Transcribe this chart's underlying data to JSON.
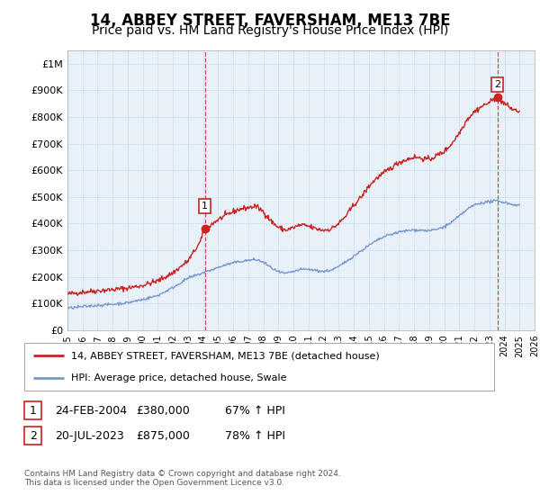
{
  "title": "14, ABBEY STREET, FAVERSHAM, ME13 7BE",
  "subtitle": "Price paid vs. HM Land Registry's House Price Index (HPI)",
  "title_fontsize": 12,
  "subtitle_fontsize": 10,
  "ylim": [
    0,
    1050000
  ],
  "xlim_start": 1995.0,
  "xlim_end": 2026.0,
  "yticks": [
    0,
    100000,
    200000,
    300000,
    400000,
    500000,
    600000,
    700000,
    800000,
    900000,
    1000000
  ],
  "ytick_labels": [
    "£0",
    "£100K",
    "£200K",
    "£300K",
    "£400K",
    "£500K",
    "£600K",
    "£700K",
    "£800K",
    "£900K",
    "£1M"
  ],
  "xticks": [
    1995,
    1996,
    1997,
    1998,
    1999,
    2000,
    2001,
    2002,
    2003,
    2004,
    2005,
    2006,
    2007,
    2008,
    2009,
    2010,
    2011,
    2012,
    2013,
    2014,
    2015,
    2016,
    2017,
    2018,
    2019,
    2020,
    2021,
    2022,
    2023,
    2024,
    2025,
    2026
  ],
  "grid_color": "#ccddee",
  "background_color": "#ffffff",
  "plot_bg_color": "#e8f0f8",
  "red_line_color": "#cc2222",
  "blue_line_color": "#7799cc",
  "sale1_x": 2004.12,
  "sale1_y": 380000,
  "sale2_x": 2023.54,
  "sale2_y": 875000,
  "sale1_label": "1",
  "sale2_label": "2",
  "legend_line1": "14, ABBEY STREET, FAVERSHAM, ME13 7BE (detached house)",
  "legend_line2": "HPI: Average price, detached house, Swale",
  "copyright": "Contains HM Land Registry data © Crown copyright and database right 2024.\nThis data is licensed under the Open Government Licence v3.0.",
  "red_anchors": [
    [
      1995.0,
      135000
    ],
    [
      1996.0,
      143000
    ],
    [
      1997.0,
      148000
    ],
    [
      1998.0,
      152000
    ],
    [
      1999.0,
      158000
    ],
    [
      2000.0,
      168000
    ],
    [
      2001.0,
      185000
    ],
    [
      2002.0,
      215000
    ],
    [
      2003.0,
      260000
    ],
    [
      2003.8,
      330000
    ],
    [
      2004.12,
      380000
    ],
    [
      2004.5,
      395000
    ],
    [
      2005.0,
      415000
    ],
    [
      2005.5,
      430000
    ],
    [
      2006.0,
      445000
    ],
    [
      2006.5,
      455000
    ],
    [
      2007.0,
      460000
    ],
    [
      2007.5,
      465000
    ],
    [
      2008.0,
      445000
    ],
    [
      2008.5,
      410000
    ],
    [
      2009.0,
      385000
    ],
    [
      2009.5,
      375000
    ],
    [
      2010.0,
      385000
    ],
    [
      2010.5,
      395000
    ],
    [
      2011.0,
      390000
    ],
    [
      2011.5,
      380000
    ],
    [
      2012.0,
      375000
    ],
    [
      2012.5,
      380000
    ],
    [
      2013.0,
      400000
    ],
    [
      2013.5,
      430000
    ],
    [
      2014.0,
      470000
    ],
    [
      2014.5,
      500000
    ],
    [
      2015.0,
      540000
    ],
    [
      2015.5,
      570000
    ],
    [
      2016.0,
      590000
    ],
    [
      2016.5,
      610000
    ],
    [
      2017.0,
      630000
    ],
    [
      2017.5,
      640000
    ],
    [
      2018.0,
      650000
    ],
    [
      2018.5,
      645000
    ],
    [
      2019.0,
      640000
    ],
    [
      2019.5,
      655000
    ],
    [
      2020.0,
      670000
    ],
    [
      2020.5,
      700000
    ],
    [
      2021.0,
      740000
    ],
    [
      2021.5,
      790000
    ],
    [
      2022.0,
      820000
    ],
    [
      2022.5,
      840000
    ],
    [
      2023.0,
      855000
    ],
    [
      2023.54,
      875000
    ],
    [
      2024.0,
      850000
    ],
    [
      2024.5,
      830000
    ],
    [
      2025.0,
      820000
    ]
  ],
  "blue_anchors": [
    [
      1995.0,
      82000
    ],
    [
      1996.0,
      88000
    ],
    [
      1997.0,
      93000
    ],
    [
      1998.0,
      97000
    ],
    [
      1999.0,
      103000
    ],
    [
      2000.0,
      115000
    ],
    [
      2001.0,
      130000
    ],
    [
      2002.0,
      160000
    ],
    [
      2003.0,
      195000
    ],
    [
      2004.0,
      215000
    ],
    [
      2004.5,
      225000
    ],
    [
      2005.0,
      235000
    ],
    [
      2005.5,
      245000
    ],
    [
      2006.0,
      252000
    ],
    [
      2006.5,
      258000
    ],
    [
      2007.0,
      262000
    ],
    [
      2007.5,
      265000
    ],
    [
      2008.0,
      255000
    ],
    [
      2008.5,
      235000
    ],
    [
      2009.0,
      218000
    ],
    [
      2009.5,
      212000
    ],
    [
      2010.0,
      220000
    ],
    [
      2010.5,
      228000
    ],
    [
      2011.0,
      228000
    ],
    [
      2011.5,
      224000
    ],
    [
      2012.0,
      220000
    ],
    [
      2012.5,
      225000
    ],
    [
      2013.0,
      238000
    ],
    [
      2013.5,
      258000
    ],
    [
      2014.0,
      278000
    ],
    [
      2014.5,
      298000
    ],
    [
      2015.0,
      318000
    ],
    [
      2015.5,
      335000
    ],
    [
      2016.0,
      350000
    ],
    [
      2016.5,
      360000
    ],
    [
      2017.0,
      368000
    ],
    [
      2017.5,
      373000
    ],
    [
      2018.0,
      376000
    ],
    [
      2018.5,
      375000
    ],
    [
      2019.0,
      373000
    ],
    [
      2019.5,
      378000
    ],
    [
      2020.0,
      388000
    ],
    [
      2020.5,
      405000
    ],
    [
      2021.0,
      428000
    ],
    [
      2021.5,
      452000
    ],
    [
      2022.0,
      470000
    ],
    [
      2022.5,
      478000
    ],
    [
      2023.0,
      482000
    ],
    [
      2023.5,
      485000
    ],
    [
      2024.0,
      480000
    ],
    [
      2024.5,
      472000
    ],
    [
      2025.0,
      468000
    ]
  ]
}
